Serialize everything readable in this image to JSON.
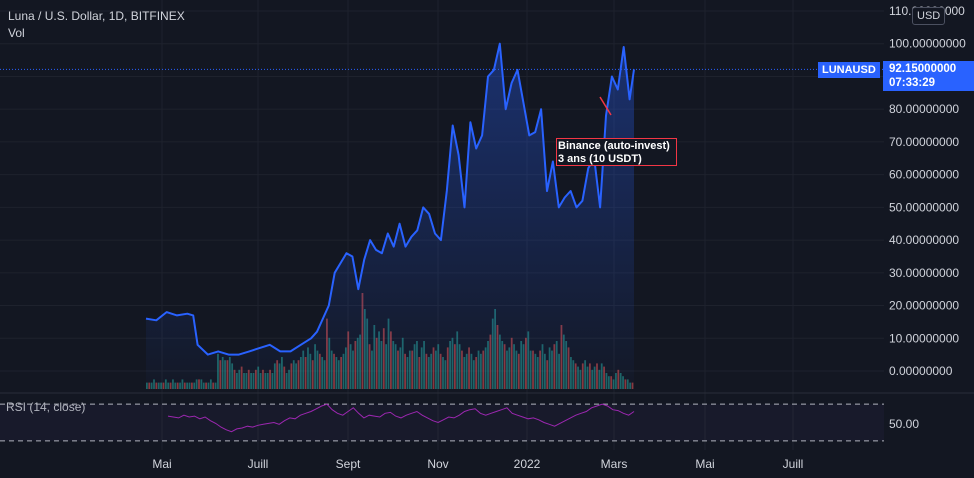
{
  "header": {
    "title": "Luna / U.S. Dollar, 1D, BITFINEX",
    "volume_label": "Vol",
    "currency": "USD"
  },
  "last_price": {
    "symbol": "LUNAUSD",
    "price": "92.15000000",
    "countdown": "07:33:29",
    "value": 92.15
  },
  "annotation": {
    "line1": "Binance (auto-invest)",
    "line2": "3 ans (10 USDT)"
  },
  "rsi": {
    "label": "RSI (14, close)",
    "tick_label": "50.00"
  },
  "colors": {
    "background": "#131722",
    "price_line": "#2962ff",
    "volume_up": "#26a69a",
    "volume_down": "#ef5350",
    "rsi_line": "#9c27b0",
    "annotation_border": "#f23645",
    "arrow": "#f23645"
  },
  "chart_data": [
    {
      "type": "line",
      "series": [
        {
          "name": "LUNAUSD",
          "x": [
            "2021-04-15",
            "2021-04-22",
            "2021-04-29",
            "2021-05-06",
            "2021-05-13",
            "2021-05-17",
            "2021-05-20",
            "2021-05-27",
            "2021-06-03",
            "2021-06-10",
            "2021-06-17",
            "2021-06-24",
            "2021-07-01",
            "2021-07-08",
            "2021-07-15",
            "2021-07-22",
            "2021-07-29",
            "2021-08-05",
            "2021-08-09",
            "2021-08-13",
            "2021-08-17",
            "2021-08-21",
            "2021-08-25",
            "2021-08-29",
            "2021-09-02",
            "2021-09-06",
            "2021-09-10",
            "2021-09-14",
            "2021-09-18",
            "2021-09-22",
            "2021-09-26",
            "2021-09-30",
            "2021-10-04",
            "2021-10-08",
            "2021-10-12",
            "2021-10-16",
            "2021-10-20",
            "2021-10-24",
            "2021-10-28",
            "2021-11-01",
            "2021-11-05",
            "2021-11-09",
            "2021-11-13",
            "2021-11-17",
            "2021-11-21",
            "2021-11-25",
            "2021-11-29",
            "2021-12-03",
            "2021-12-07",
            "2021-12-11",
            "2021-12-15",
            "2021-12-19",
            "2021-12-23",
            "2021-12-27",
            "2021-12-31",
            "2022-01-04",
            "2022-01-08",
            "2022-01-12",
            "2022-01-16",
            "2022-01-20",
            "2022-01-24",
            "2022-01-28",
            "2022-02-01",
            "2022-02-05",
            "2022-02-09",
            "2022-02-13",
            "2022-02-17",
            "2022-02-21",
            "2022-02-25",
            "2022-03-01",
            "2022-03-05",
            "2022-03-09",
            "2022-03-12"
          ],
          "y": [
            16,
            15.5,
            18,
            17,
            17.5,
            17,
            8,
            5,
            6,
            5,
            5,
            6,
            7,
            8,
            6,
            6,
            8,
            10,
            12,
            16,
            20,
            30,
            33,
            36,
            35,
            25,
            34,
            40,
            37,
            36,
            42,
            38,
            45,
            38,
            41,
            43,
            50,
            48,
            42,
            40,
            55,
            75,
            66,
            50,
            76,
            68,
            72,
            90,
            92,
            100,
            80,
            88,
            92,
            82,
            72,
            73,
            80,
            55,
            64,
            50,
            53,
            55,
            50,
            52,
            62,
            65,
            50,
            78,
            90,
            86,
            99,
            83,
            92.15
          ]
        }
      ],
      "ylim": [
        -2.5,
        111
      ],
      "y_ticks": [
        "110.00000000",
        "100.00000000",
        "90.00000000",
        "80.00000000",
        "70.00000000",
        "60.00000000",
        "50.00000000",
        "40.00000000",
        "30.00000000",
        "20.00000000",
        "10.00000000",
        "0.00000000"
      ],
      "x_ticks": [
        "Mai",
        "Juill",
        "Sept",
        "Nov",
        "2022",
        "Mars",
        "Mai",
        "Juill"
      ]
    },
    {
      "type": "bar",
      "name": "Vol",
      "values": [
        2,
        2,
        2,
        3,
        2,
        2,
        2,
        2,
        3,
        2,
        2,
        3,
        2,
        2,
        2,
        3,
        2,
        2,
        2,
        2,
        2,
        3,
        3,
        3,
        2,
        2,
        2,
        3,
        2,
        2,
        11,
        9,
        10,
        9,
        9,
        10,
        8,
        6,
        5,
        6,
        7,
        5,
        5,
        6,
        5,
        5,
        6,
        7,
        5,
        6,
        5,
        5,
        6,
        5,
        8,
        9,
        8,
        10,
        7,
        5,
        6,
        8,
        9,
        8,
        9,
        10,
        12,
        10,
        13,
        11,
        9,
        14,
        12,
        11,
        10,
        9,
        22,
        16,
        12,
        11,
        10,
        9,
        10,
        11,
        13,
        18,
        14,
        12,
        15,
        16,
        17,
        30,
        25,
        22,
        14,
        12,
        20,
        16,
        18,
        15,
        19,
        14,
        22,
        18,
        15,
        14,
        12,
        13,
        16,
        11,
        10,
        12,
        12,
        14,
        15,
        10,
        13,
        15,
        11,
        10,
        11,
        13,
        12,
        14,
        11,
        10,
        9,
        13,
        15,
        16,
        14,
        18,
        14,
        12,
        10,
        11,
        13,
        11,
        9,
        10,
        12,
        11,
        12,
        13,
        15,
        17,
        22,
        25,
        20,
        17,
        15,
        14,
        12,
        13,
        16,
        14,
        12,
        11,
        15,
        14,
        16,
        18,
        12,
        12,
        11,
        10,
        12,
        14,
        11,
        9,
        13,
        12,
        14,
        15,
        11,
        20,
        17,
        15,
        13,
        10,
        9,
        8,
        7,
        6,
        8,
        9,
        7,
        8,
        6,
        7,
        8,
        6,
        8,
        7,
        5,
        4,
        4,
        3,
        5,
        6,
        5,
        4,
        3,
        3,
        2,
        2
      ],
      "up_down": "alternating"
    },
    {
      "type": "line",
      "name": "RSI (14, close)",
      "values": [
        57,
        56,
        55,
        58,
        56,
        57,
        54,
        56,
        52,
        49,
        45,
        42,
        40,
        43,
        44,
        46,
        45,
        47,
        48,
        49,
        50,
        48,
        52,
        55,
        54,
        58,
        60,
        62,
        65,
        68,
        70,
        64,
        60,
        58,
        62,
        66,
        60,
        55,
        58,
        57,
        56,
        60,
        61,
        57,
        55,
        58,
        60,
        62,
        58,
        55,
        52,
        50,
        53,
        56,
        55,
        58,
        62,
        64,
        65,
        60,
        58,
        60,
        62,
        64,
        66,
        60,
        58,
        56,
        54,
        55,
        53,
        50,
        48,
        46,
        49,
        52,
        55,
        58,
        60,
        62,
        66,
        68,
        70,
        68,
        64,
        63,
        60,
        58,
        62
      ],
      "reference_levels": [
        70,
        30
      ],
      "ylim": [
        20,
        80
      ]
    }
  ]
}
